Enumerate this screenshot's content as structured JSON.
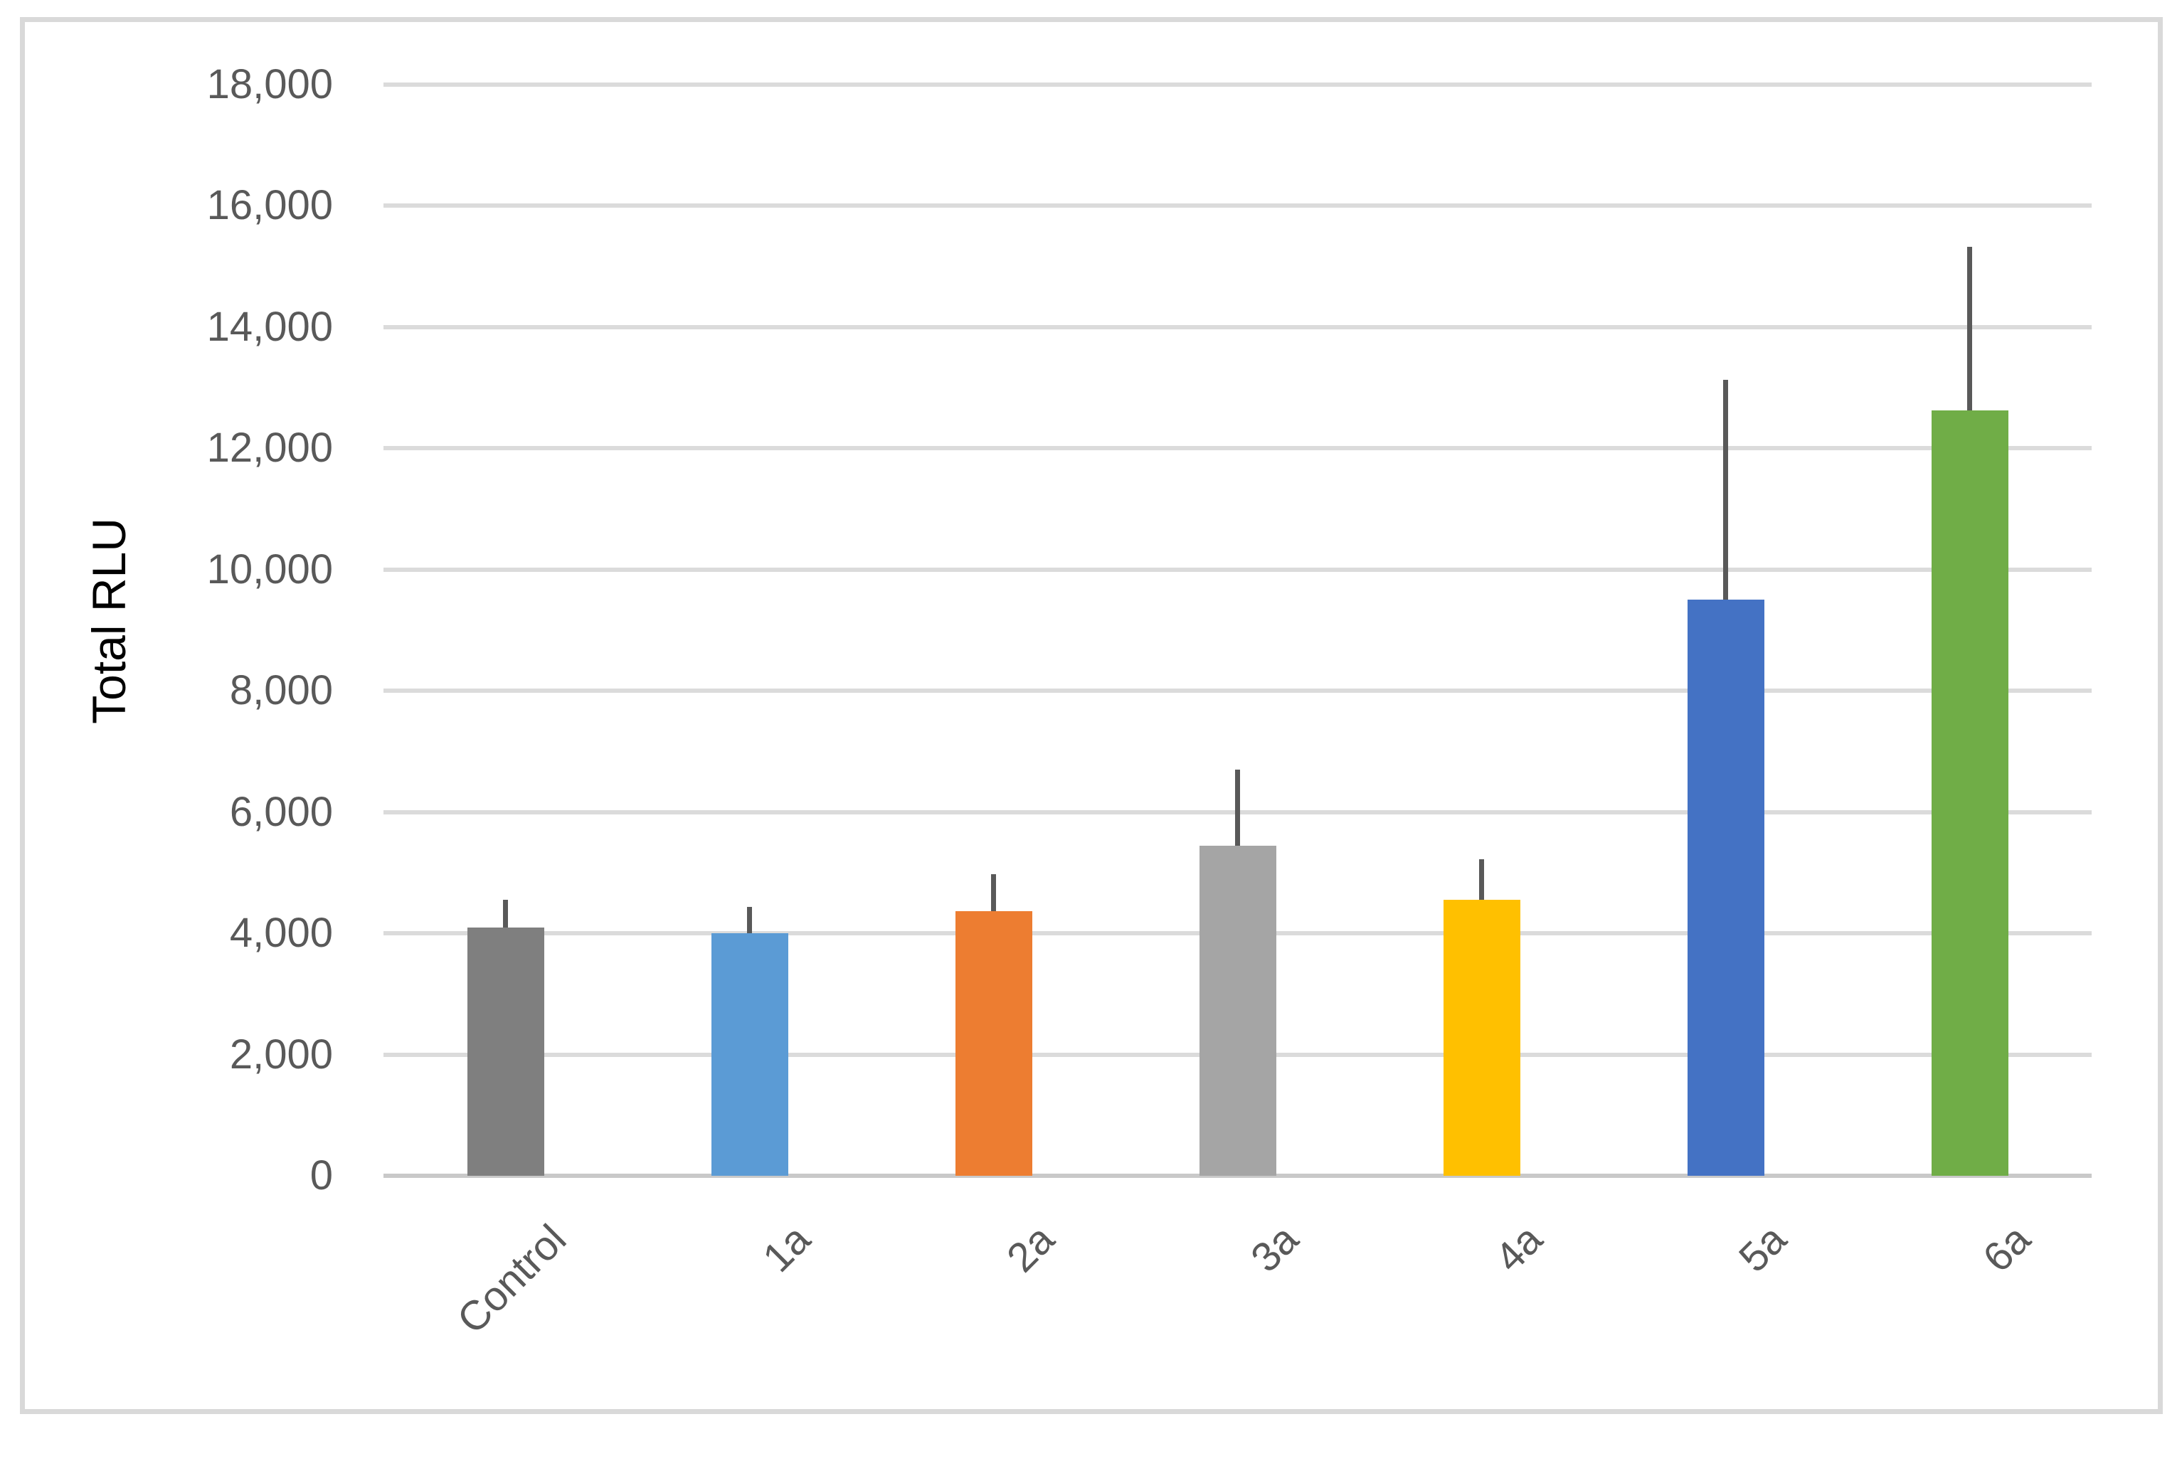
{
  "chart_data": {
    "type": "bar",
    "title": "",
    "xlabel": "",
    "ylabel": "Total RLU",
    "ylim": [
      0,
      18000
    ],
    "grid": true,
    "legend_position": "none",
    "categories": [
      "Control",
      "1a",
      "2a",
      "3a",
      "4a",
      "5a",
      "6a"
    ],
    "values": [
      4100,
      4000,
      4360,
      5440,
      4550,
      9510,
      12630
    ],
    "error_plus": [
      450,
      430,
      610,
      1260,
      670,
      3620,
      2700
    ],
    "bar_colors": [
      "#7F7F7F",
      "#5B9BD5",
      "#ED7D31",
      "#A5A5A5",
      "#FFC000",
      "#4472C4",
      "#70AD47"
    ],
    "error_bar_color": "#595959",
    "gridline_color": "#DBDBDB",
    "axis_line_color": "#C9C9C9",
    "tick_label_color": "#595959",
    "frame_border_color": "#D9D9D9",
    "y_ticks": {
      "values": [
        0,
        2000,
        4000,
        6000,
        8000,
        10000,
        12000,
        14000,
        16000,
        18000
      ],
      "labels": [
        "0",
        "2,000",
        "4,000",
        "6,000",
        "8,000",
        "10,000",
        "12,000",
        "14,000",
        "16,000",
        "18,000"
      ]
    }
  }
}
